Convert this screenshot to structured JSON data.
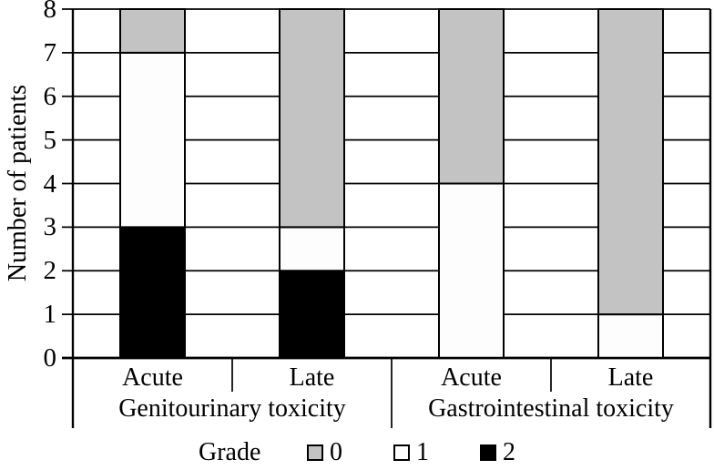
{
  "chart_data": {
    "type": "bar",
    "stacked": true,
    "title": "",
    "xlabel": "",
    "ylabel": "Number of patients",
    "ylim": [
      0,
      8
    ],
    "yticks": [
      0,
      1,
      2,
      3,
      4,
      5,
      6,
      7,
      8
    ],
    "grid": true,
    "legend_position": "bottom",
    "grade_colors": {
      "0": "#c3c3c3",
      "1": "#fdfdfd",
      "2": "#000000"
    },
    "groups": [
      {
        "label": "Genitourinary toxicity",
        "bars": [
          {
            "category": "Acute",
            "segments": [
              {
                "grade": "2",
                "value": 3
              },
              {
                "grade": "1",
                "value": 4
              },
              {
                "grade": "0",
                "value": 1
              }
            ]
          },
          {
            "category": "Late",
            "segments": [
              {
                "grade": "2",
                "value": 2
              },
              {
                "grade": "1",
                "value": 1
              },
              {
                "grade": "0",
                "value": 5
              }
            ]
          }
        ]
      },
      {
        "label": "Gastrointestinal toxicity",
        "bars": [
          {
            "category": "Acute",
            "segments": [
              {
                "grade": "2",
                "value": 0
              },
              {
                "grade": "1",
                "value": 4
              },
              {
                "grade": "0",
                "value": 4
              }
            ]
          },
          {
            "category": "Late",
            "segments": [
              {
                "grade": "2",
                "value": 0
              },
              {
                "grade": "1",
                "value": 1
              },
              {
                "grade": "0",
                "value": 7
              }
            ]
          }
        ]
      }
    ],
    "legend": {
      "title": "Grade",
      "entries": [
        {
          "label": "0",
          "color": "#c3c3c3"
        },
        {
          "label": "1",
          "color": "#fdfdfd"
        },
        {
          "label": "2",
          "color": "#000000"
        }
      ]
    }
  }
}
